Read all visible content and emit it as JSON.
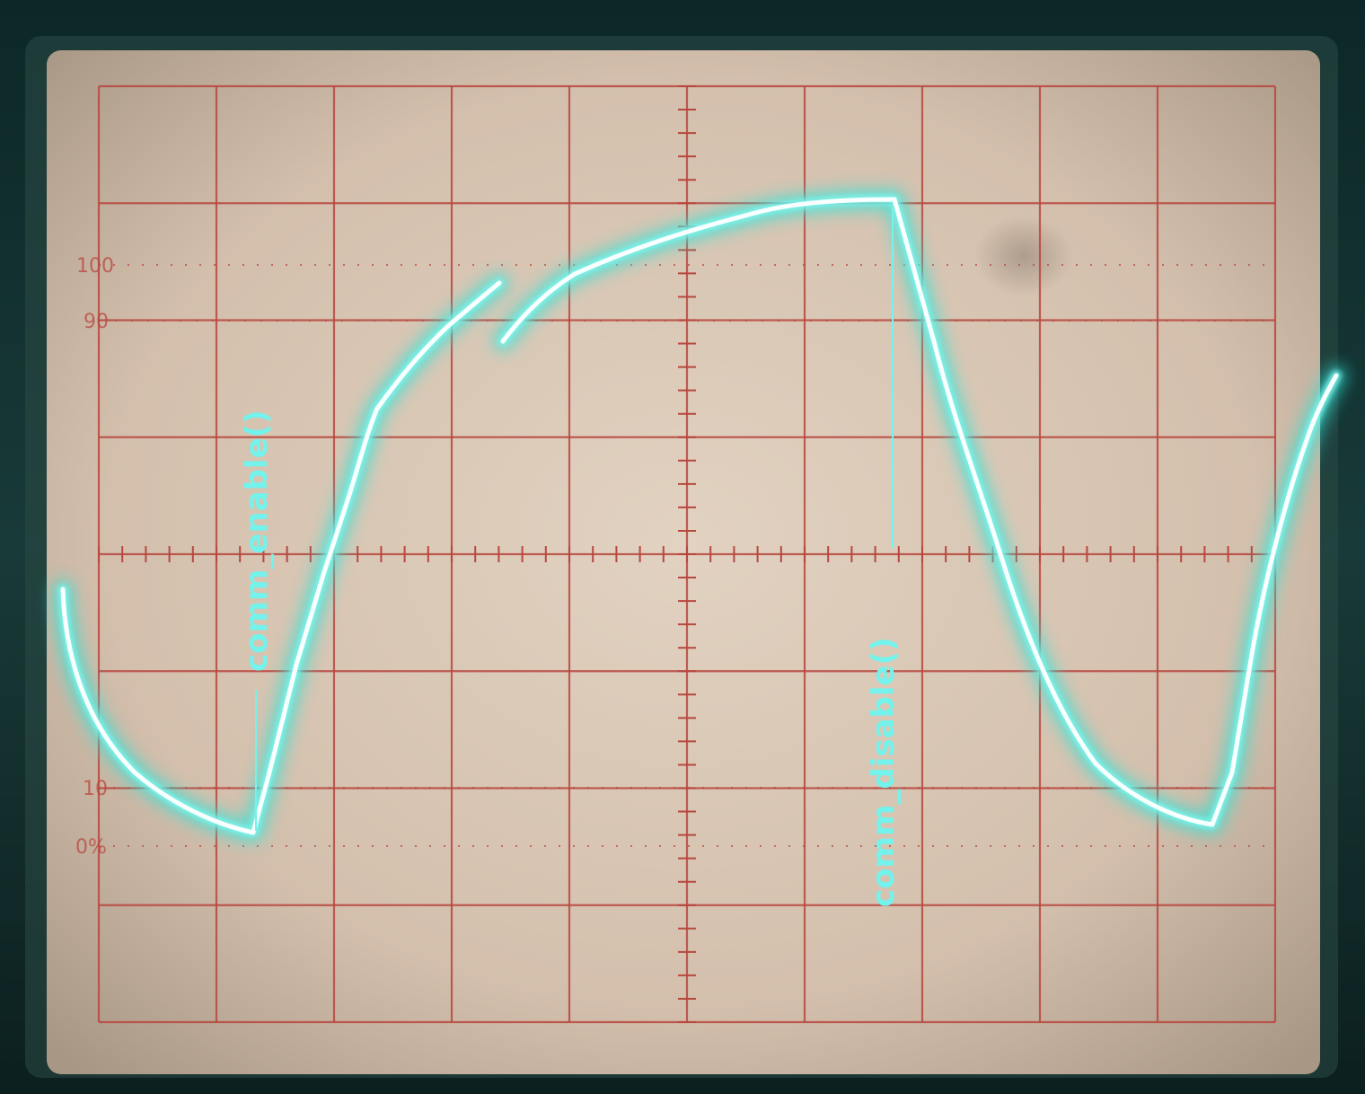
{
  "photo": {
    "subject": "analog oscilloscope screen with a trace"
  },
  "graticule": {
    "labels": [
      "100",
      "90",
      "10",
      "0%"
    ],
    "grid_color": "#b8473f",
    "screen_color": "#d9c6b4"
  },
  "trace": {
    "color": "#7ff6ee",
    "glow_color": "#2fe3d8"
  },
  "annotations": {
    "enable_label": "comm_enable()",
    "disable_label": "comm_disable()",
    "color": "#73f3ec"
  }
}
